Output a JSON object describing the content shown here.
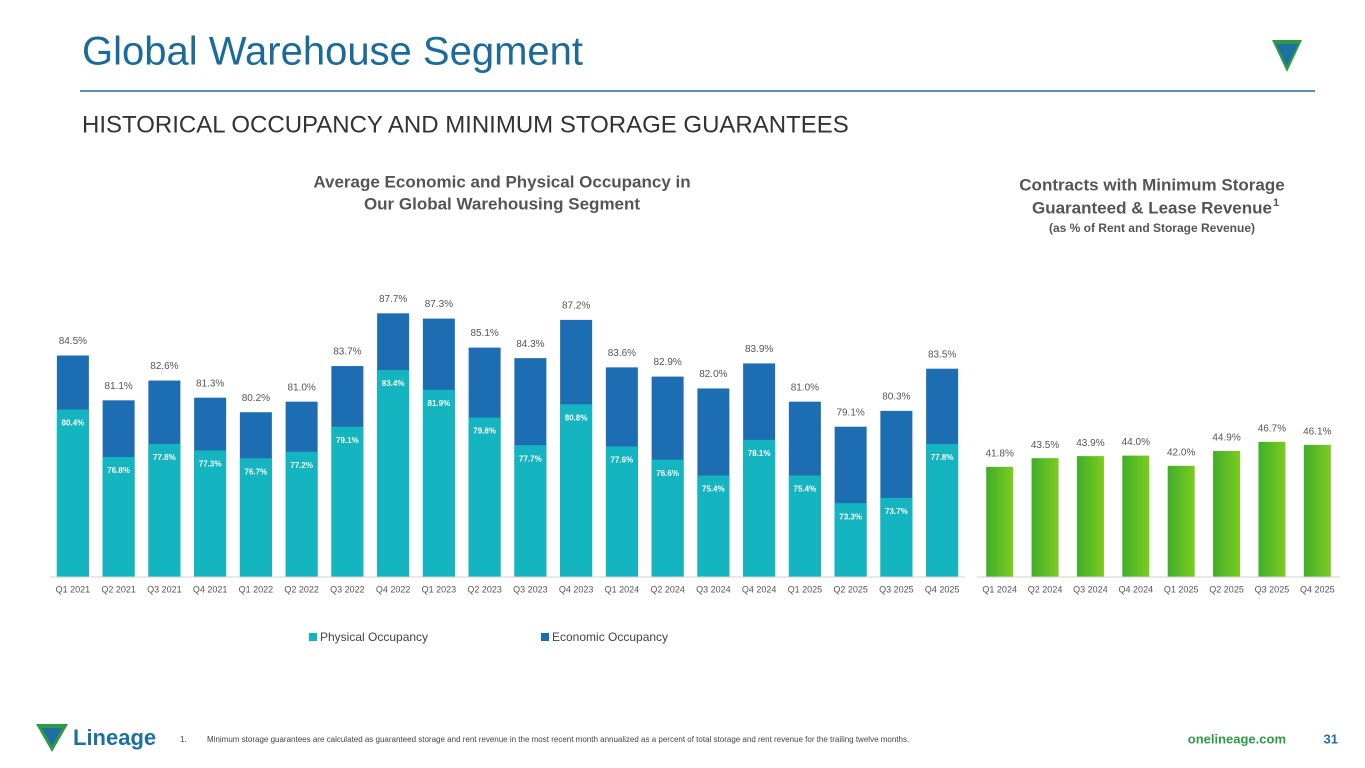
{
  "header": {
    "title": "Global Warehouse Segment",
    "subtitle": "HISTORICAL OCCUPANCY AND MINIMUM STORAGE GUARANTEES"
  },
  "chart_data": [
    {
      "type": "overlap_bar",
      "title": [
        "Average Economic and Physical Occupancy in",
        "Our Global Warehousing Segment"
      ],
      "categories": [
        "Q1 2021",
        "Q2 2021",
        "Q3 2021",
        "Q4 2021",
        "Q1 2022",
        "Q2 2022",
        "Q3 2022",
        "Q4 2022",
        "Q1 2023",
        "Q2 2023",
        "Q3 2023",
        "Q4 2023",
        "Q1 2024",
        "Q2 2024",
        "Q3 2024",
        "Q4 2024",
        "Q1 2025",
        "Q2 2025",
        "Q3 2025",
        "Q4 2025"
      ],
      "series": [
        {
          "name": "Physical Occupancy",
          "color": "#14b5c0",
          "values": [
            80.4,
            76.8,
            77.8,
            77.3,
            76.7,
            77.2,
            79.1,
            83.4,
            81.9,
            79.8,
            77.7,
            80.8,
            77.6,
            76.6,
            75.4,
            78.1,
            75.4,
            73.3,
            73.7,
            77.8
          ],
          "value_labels": [
            "80.4%",
            "76.8%",
            "77.8%",
            "77.3%",
            "76.7%",
            "77.2%",
            "79.1%",
            "83.4%",
            "81.9%",
            "79.8%",
            "77.7%",
            "80.8%",
            "77.6%",
            "76.6%",
            "75.4%",
            "78.1%",
            "75.4%",
            "73.3%",
            "73.7%",
            "77.8%"
          ]
        },
        {
          "name": "Economic Occupancy",
          "color": "#1d6db2",
          "values": [
            84.5,
            81.1,
            82.6,
            81.3,
            80.2,
            81.0,
            83.7,
            87.7,
            87.3,
            85.1,
            84.3,
            87.2,
            83.6,
            82.9,
            82.0,
            83.9,
            81.0,
            79.1,
            80.3,
            83.5
          ],
          "value_labels": [
            "84.5%",
            "81.1%",
            "82.6%",
            "81.3%",
            "80.2%",
            "81.0%",
            "83.7%",
            "87.7%",
            "87.3%",
            "85.1%",
            "84.3%",
            "87.2%",
            "83.6%",
            "82.9%",
            "82.0%",
            "83.9%",
            "81.0%",
            "79.1%",
            "80.3%",
            "83.5%"
          ]
        }
      ],
      "ylim": [
        67.7,
        90
      ]
    },
    {
      "type": "bar",
      "title": [
        "Contracts with Minimum Storage",
        "Guaranteed & Lease Revenue"
      ],
      "title_note": "1",
      "subtitle": "(as % of Rent and Storage Revenue)",
      "categories": [
        "Q1 2024",
        "Q2 2024",
        "Q3 2024",
        "Q4 2024",
        "Q1 2025",
        "Q2 2025",
        "Q3 2025",
        "Q4 2025"
      ],
      "values": [
        41.8,
        43.5,
        43.9,
        44.0,
        42.0,
        44.9,
        46.7,
        46.1
      ],
      "value_labels": [
        "41.8%",
        "43.5%",
        "43.9%",
        "44.0%",
        "42.0%",
        "44.9%",
        "46.7%",
        "46.1%"
      ],
      "color": "#5cbf24",
      "ylim": [
        20.2,
        50
      ]
    }
  ],
  "footer": {
    "logo": "Lineage",
    "note_marker": "1.",
    "note": "Minimum storage guarantees are calculated as guaranteed storage and rent revenue in the most recent month annualized as a percent of total storage and rent revenue for the trailing twelve months.",
    "url": "onelineage.com",
    "page": "31"
  }
}
